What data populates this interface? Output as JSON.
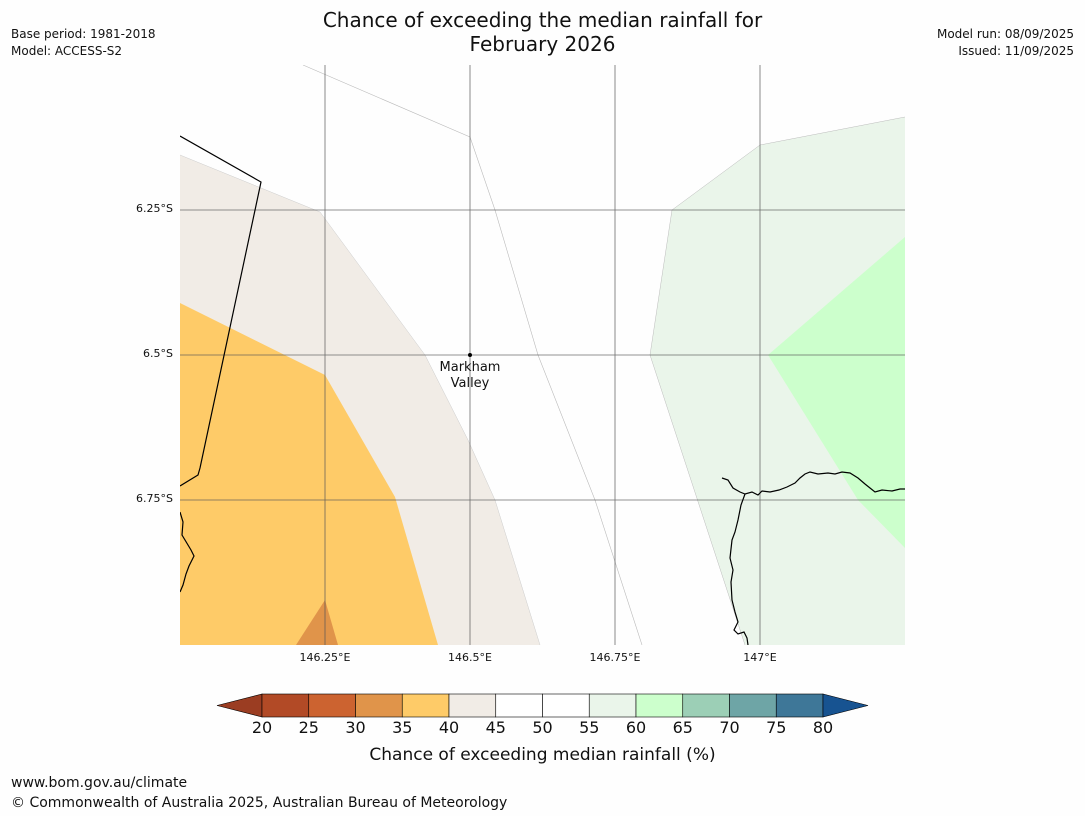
{
  "title": {
    "line1": "Chance of exceeding the median rainfall for",
    "line2": "February 2026"
  },
  "meta": {
    "base_period": "Base period: 1981-2018",
    "model": "Model: ACCESS-S2",
    "model_run": "Model run: 08/09/2025",
    "issued": "Issued: 11/09/2025"
  },
  "map": {
    "lat_labels": [
      "6.25°S",
      "6.5°S",
      "6.75°S"
    ],
    "lon_labels": [
      "146.25°E",
      "146.5°E",
      "146.75°E",
      "147°E"
    ],
    "location": {
      "name_line1": "Markham",
      "name_line2": "Valley",
      "lat": -6.5,
      "lon": 146.5
    },
    "zones": [
      {
        "category": "35-40",
        "color": "#fecb68"
      },
      {
        "category": "30-35",
        "color": "#e0944a"
      },
      {
        "category": "40-45",
        "color": "#f1ece6"
      },
      {
        "category": "55-60",
        "color": "#eaf5ea"
      },
      {
        "category": "60-65",
        "color": "#ccffcc"
      }
    ]
  },
  "colorbar": {
    "label": "Chance of exceeding median rainfall (%)",
    "ticks": [
      "20",
      "25",
      "30",
      "35",
      "40",
      "45",
      "50",
      "55",
      "60",
      "65",
      "70",
      "75",
      "80"
    ],
    "colors": [
      "#b24a26",
      "#cc6330",
      "#e0944a",
      "#fecb68",
      "#f1ece6",
      "#ffffff",
      "#ffffff",
      "#eaf5ea",
      "#ccffcc",
      "#9ccfb6",
      "#6ea5a6",
      "#3e7798"
    ],
    "extend_low_color": "#9b3d22",
    "extend_high_color": "#175391"
  },
  "footer": {
    "url": "www.bom.gov.au/climate",
    "copyright": "© Commonwealth of Australia 2025, Australian Bureau of Meteorology"
  }
}
